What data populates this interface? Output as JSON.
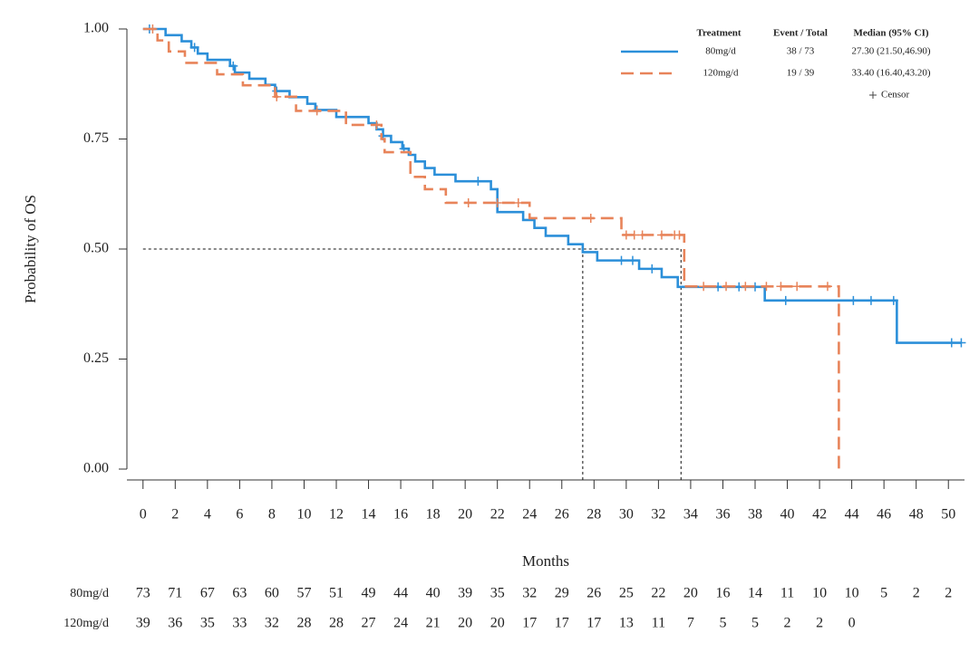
{
  "chart_data": {
    "type": "kaplan-meier",
    "y_label": "Probability of OS",
    "x_label": "Months",
    "xlim": [
      -1,
      51
    ],
    "ylim": [
      0,
      1
    ],
    "xticks": [
      0,
      2,
      4,
      6,
      8,
      10,
      12,
      14,
      16,
      18,
      20,
      22,
      24,
      26,
      28,
      30,
      32,
      34,
      36,
      38,
      40,
      42,
      44,
      46,
      48,
      50
    ],
    "yticks": [
      {
        "value": 0,
        "label": "0.00"
      },
      {
        "value": 0.25,
        "label": "0.25"
      },
      {
        "value": 0.5,
        "label": "0.50"
      },
      {
        "value": 0.75,
        "label": "0.75"
      },
      {
        "value": 1,
        "label": "1.00"
      }
    ],
    "median_survival": 0.5,
    "legend_headers": [
      "Treatment",
      "Event / Total",
      "Median (95% CI)"
    ],
    "censor_label": "Censor",
    "series": [
      {
        "name": "80mg/d",
        "color": "#2b8fd9",
        "dash": false,
        "event_total": "38 / 73",
        "median": 27.3,
        "median_label": "27.30 (21.50,46.90)",
        "x": [
          0,
          1.4,
          2.4,
          3.0,
          3.4,
          4.0,
          5.4,
          5.7,
          6.6,
          7.6,
          8.2,
          9.1,
          10.2,
          10.7,
          12.0,
          14.0,
          14.5,
          14.9,
          15.4,
          16.1,
          16.5,
          16.9,
          17.5,
          18.1,
          19.4,
          21.6,
          22.0,
          23.6,
          24.3,
          25.0,
          26.4,
          27.3,
          28.2,
          30.8,
          32.2,
          33.2,
          38.6,
          46.8
        ],
        "values": [
          1.0,
          0.986,
          0.972,
          0.958,
          0.944,
          0.93,
          0.916,
          0.901,
          0.887,
          0.873,
          0.859,
          0.845,
          0.83,
          0.816,
          0.8,
          0.786,
          0.772,
          0.757,
          0.743,
          0.728,
          0.714,
          0.699,
          0.684,
          0.669,
          0.654,
          0.636,
          0.584,
          0.566,
          0.548,
          0.53,
          0.511,
          0.493,
          0.474,
          0.455,
          0.436,
          0.414,
          0.383,
          0.287
        ],
        "censors": [
          0.4,
          3.2,
          5.6,
          8.3,
          10.8,
          14.9,
          16.2,
          20.8,
          29.7,
          30.4,
          31.6,
          35.7,
          37.0,
          38.0,
          39.9,
          44.1,
          45.2,
          46.6,
          50.2,
          50.8
        ],
        "at_risk": [
          73,
          71,
          67,
          63,
          60,
          57,
          51,
          49,
          44,
          40,
          39,
          35,
          32,
          29,
          26,
          25,
          22,
          20,
          16,
          14,
          11,
          10,
          10,
          5,
          2,
          2
        ]
      },
      {
        "name": "120mg/d",
        "color": "#e8845a",
        "dash": true,
        "event_total": "19 / 39",
        "median": 33.4,
        "median_label": "33.40 (16.40,43.20)",
        "x": [
          0,
          0.9,
          1.6,
          2.6,
          4.6,
          6.2,
          8.2,
          9.5,
          12.6,
          14.8,
          15.0,
          16.6,
          17.5,
          18.8,
          24.0,
          29.7,
          33.6,
          43.2
        ],
        "values": [
          1.0,
          0.974,
          0.949,
          0.923,
          0.897,
          0.872,
          0.846,
          0.814,
          0.782,
          0.75,
          0.72,
          0.664,
          0.636,
          0.605,
          0.57,
          0.532,
          0.415,
          0.0
        ],
        "censors": [
          0.6,
          8.3,
          10.8,
          14.5,
          20.2,
          22.0,
          23.3,
          27.8,
          30.0,
          30.5,
          31.0,
          32.2,
          33.0,
          33.3,
          34.8,
          36.2,
          37.4,
          38.7,
          39.6,
          40.6,
          42.5
        ],
        "at_risk": [
          39,
          36,
          35,
          33,
          32,
          28,
          28,
          27,
          24,
          21,
          20,
          20,
          17,
          17,
          17,
          13,
          11,
          7,
          5,
          5,
          2,
          2,
          0
        ]
      }
    ]
  }
}
